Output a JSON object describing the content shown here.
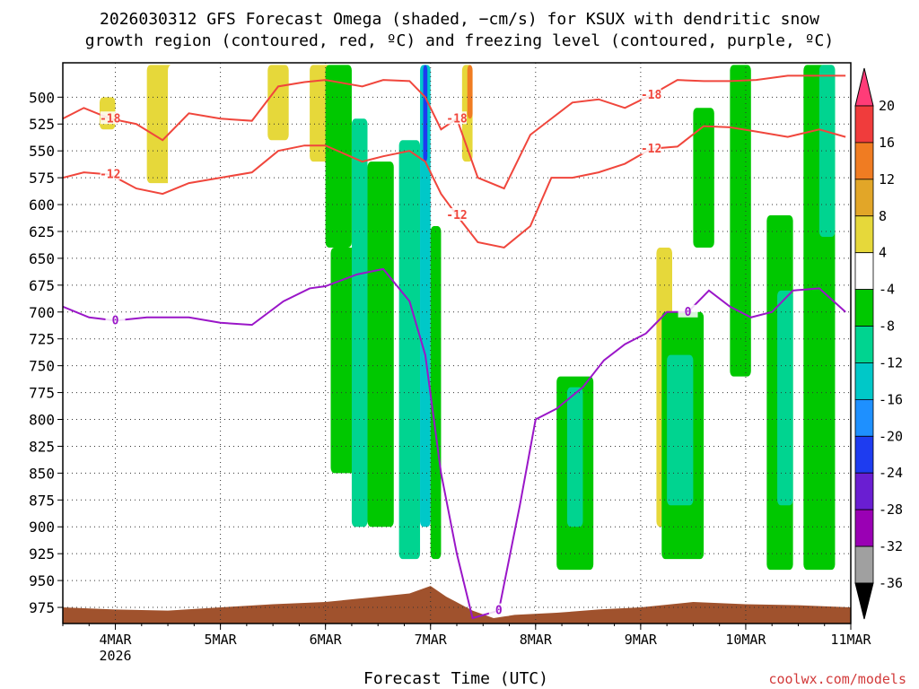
{
  "title_line1": "2026030312 GFS Forecast Omega (shaded, −cm/s) for KSUX with dendritic snow",
  "title_line2": "growth region (contoured, red, ºC) and freezing level (contoured, purple, ºC)",
  "xlabel": "Forecast Time (UTC)",
  "credit": "coolwx.com/models",
  "colors": {
    "dgz_contour": "#f0463c",
    "freezing_contour": "#9a16c8",
    "terrain": "#a0522d"
  },
  "chart_data": {
    "type": "heatmap",
    "title": "2026030312 GFS Forecast Omega (shaded, −cm/s) for KSUX with dendritic snow growth region (contoured, red, ºC) and freezing level (contoured, purple, ºC)",
    "xlabel": "Forecast Time (UTC)",
    "ylabel": "",
    "x_axis": {
      "type": "time",
      "range": [
        "2026-03-03T15:00Z",
        "2026-03-11T00:00Z"
      ],
      "tick_labels": [
        "4MAR",
        "5MAR",
        "6MAR",
        "7MAR",
        "8MAR",
        "9MAR",
        "10MAR",
        "11MAR"
      ],
      "year_label": "2026"
    },
    "y_axis": {
      "unit": "hPa",
      "inverted": true,
      "range": [
        990,
        468
      ],
      "tick_labels": [
        "500",
        "525",
        "550",
        "575",
        "600",
        "625",
        "650",
        "675",
        "700",
        "725",
        "750",
        "775",
        "800",
        "825",
        "850",
        "875",
        "900",
        "925",
        "950",
        "975"
      ]
    },
    "grid": "dotted",
    "colorbar": {
      "levels": [
        20,
        16,
        12,
        8,
        4,
        -4,
        -8,
        -12,
        -16,
        -20,
        -24,
        -28,
        -32,
        -36
      ],
      "colors": [
        "#ff3c78",
        "#f03c3c",
        "#f07c22",
        "#e2a628",
        "#e6d83a",
        "#ffffff",
        "#00c800",
        "#00d490",
        "#00c8c8",
        "#1e90ff",
        "#1e3cf0",
        "#6a1ed2",
        "#9a00b4",
        "#a0a0a0",
        "#000000"
      ]
    },
    "omega_regions": [
      {
        "x": [
          3.85,
          4.0
        ],
        "p": [
          500,
          530
        ],
        "omega": 4
      },
      {
        "x": [
          4.3,
          4.55
        ],
        "p": [
          470,
          580
        ],
        "omega": 4
      },
      {
        "x": [
          4.5,
          4.6
        ],
        "p": [
          470,
          640
        ],
        "omega": -4
      },
      {
        "x": [
          5.45,
          5.65
        ],
        "p": [
          470,
          540
        ],
        "omega": 4
      },
      {
        "x": [
          5.85,
          6.05
        ],
        "p": [
          470,
          560
        ],
        "omega": 4
      },
      {
        "x": [
          6.0,
          6.25
        ],
        "p": [
          470,
          640
        ],
        "omega": -8
      },
      {
        "x": [
          6.05,
          6.3
        ],
        "p": [
          640,
          850
        ],
        "omega": -8
      },
      {
        "x": [
          6.25,
          6.4
        ],
        "p": [
          520,
          900
        ],
        "omega": -12
      },
      {
        "x": [
          6.4,
          6.65
        ],
        "p": [
          560,
          900
        ],
        "omega": -8
      },
      {
        "x": [
          6.7,
          6.9
        ],
        "p": [
          540,
          930
        ],
        "omega": -12
      },
      {
        "x": [
          6.9,
          7.0
        ],
        "p": [
          470,
          900
        ],
        "omega": -16
      },
      {
        "x": [
          6.93,
          6.97
        ],
        "p": [
          470,
          560
        ],
        "omega": -24
      },
      {
        "x": [
          7.0,
          7.1
        ],
        "p": [
          620,
          930
        ],
        "omega": -8
      },
      {
        "x": [
          7.3,
          7.4
        ],
        "p": [
          470,
          560
        ],
        "omega": 4
      },
      {
        "x": [
          7.35,
          7.4
        ],
        "p": [
          470,
          520
        ],
        "omega": 12
      },
      {
        "x": [
          8.2,
          8.55
        ],
        "p": [
          760,
          940
        ],
        "omega": -8
      },
      {
        "x": [
          8.3,
          8.45
        ],
        "p": [
          770,
          900
        ],
        "omega": -12
      },
      {
        "x": [
          9.15,
          9.3
        ],
        "p": [
          640,
          900
        ],
        "omega": 4
      },
      {
        "x": [
          9.2,
          9.6
        ],
        "p": [
          700,
          930
        ],
        "omega": -8
      },
      {
        "x": [
          9.25,
          9.5
        ],
        "p": [
          740,
          880
        ],
        "omega": -12
      },
      {
        "x": [
          9.5,
          9.7
        ],
        "p": [
          510,
          640
        ],
        "omega": -8
      },
      {
        "x": [
          9.85,
          10.05
        ],
        "p": [
          470,
          760
        ],
        "omega": -8
      },
      {
        "x": [
          10.2,
          10.45
        ],
        "p": [
          610,
          940
        ],
        "omega": -8
      },
      {
        "x": [
          10.3,
          10.45
        ],
        "p": [
          680,
          880
        ],
        "omega": -12
      },
      {
        "x": [
          10.55,
          10.85
        ],
        "p": [
          470,
          940
        ],
        "omega": -8
      },
      {
        "x": [
          10.7,
          10.85
        ],
        "p": [
          470,
          630
        ],
        "omega": -12
      }
    ],
    "contours": [
      {
        "name": "dgz -18 C",
        "color": "#f0463c",
        "label": "-18",
        "x": [
          3.5,
          3.7,
          3.95,
          4.2,
          4.45,
          4.7,
          5.0,
          5.3,
          5.55,
          5.8,
          6.0,
          6.35,
          6.55,
          6.8,
          6.95,
          7.1,
          7.25,
          7.45,
          7.7,
          7.95,
          8.15,
          8.35,
          8.6,
          8.85,
          9.1,
          9.35,
          9.6,
          9.85,
          10.1,
          10.4,
          10.7,
          10.95
        ],
        "p": [
          520,
          510,
          520,
          525,
          540,
          515,
          520,
          522,
          490,
          486,
          484,
          490,
          484,
          485,
          500,
          530,
          520,
          575,
          585,
          535,
          520,
          505,
          502,
          510,
          498,
          484,
          485,
          485,
          484,
          480,
          480,
          480
        ]
      },
      {
        "name": "dgz -12 C",
        "color": "#f0463c",
        "label": "-12",
        "x": [
          3.5,
          3.7,
          3.95,
          4.2,
          4.45,
          4.7,
          5.0,
          5.3,
          5.55,
          5.8,
          6.0,
          6.35,
          6.55,
          6.8,
          6.95,
          7.1,
          7.25,
          7.45,
          7.7,
          7.95,
          8.15,
          8.35,
          8.6,
          8.85,
          9.1,
          9.35,
          9.6,
          9.85,
          10.1,
          10.4,
          10.7,
          10.95
        ],
        "p": [
          575,
          570,
          572,
          585,
          590,
          580,
          575,
          570,
          550,
          545,
          545,
          560,
          555,
          550,
          560,
          590,
          610,
          635,
          640,
          620,
          575,
          575,
          570,
          562,
          548,
          546,
          527,
          528,
          532,
          537,
          530,
          537
        ]
      },
      {
        "name": "freezing level 0 C",
        "color": "#9a16c8",
        "label": "0",
        "x": [
          3.5,
          3.75,
          4.0,
          4.3,
          4.7,
          5.0,
          5.3,
          5.6,
          5.85,
          6.0,
          6.3,
          6.55,
          6.8,
          6.95,
          7.1,
          7.25,
          7.4,
          7.65,
          7.85,
          8.0,
          8.2,
          8.45,
          8.65,
          8.85,
          9.05,
          9.25,
          9.45,
          9.65,
          9.85,
          10.05,
          10.25,
          10.45,
          10.7,
          10.95
        ],
        "p": [
          695,
          705,
          708,
          705,
          705,
          710,
          712,
          690,
          678,
          676,
          665,
          660,
          690,
          740,
          850,
          925,
          985,
          978,
          880,
          800,
          790,
          770,
          745,
          730,
          720,
          700,
          700,
          680,
          695,
          705,
          700,
          680,
          678,
          700
        ]
      }
    ],
    "terrain": {
      "x": [
        3.5,
        4.0,
        4.5,
        5.0,
        5.5,
        6.0,
        6.5,
        6.8,
        7.0,
        7.15,
        7.4,
        7.6,
        7.8,
        8.2,
        8.6,
        9.0,
        9.5,
        10.0,
        10.5,
        11.0
      ],
      "p": [
        975,
        977,
        978,
        975,
        972,
        970,
        965,
        962,
        955,
        965,
        978,
        985,
        982,
        980,
        977,
        975,
        970,
        972,
        973,
        975
      ]
    }
  }
}
